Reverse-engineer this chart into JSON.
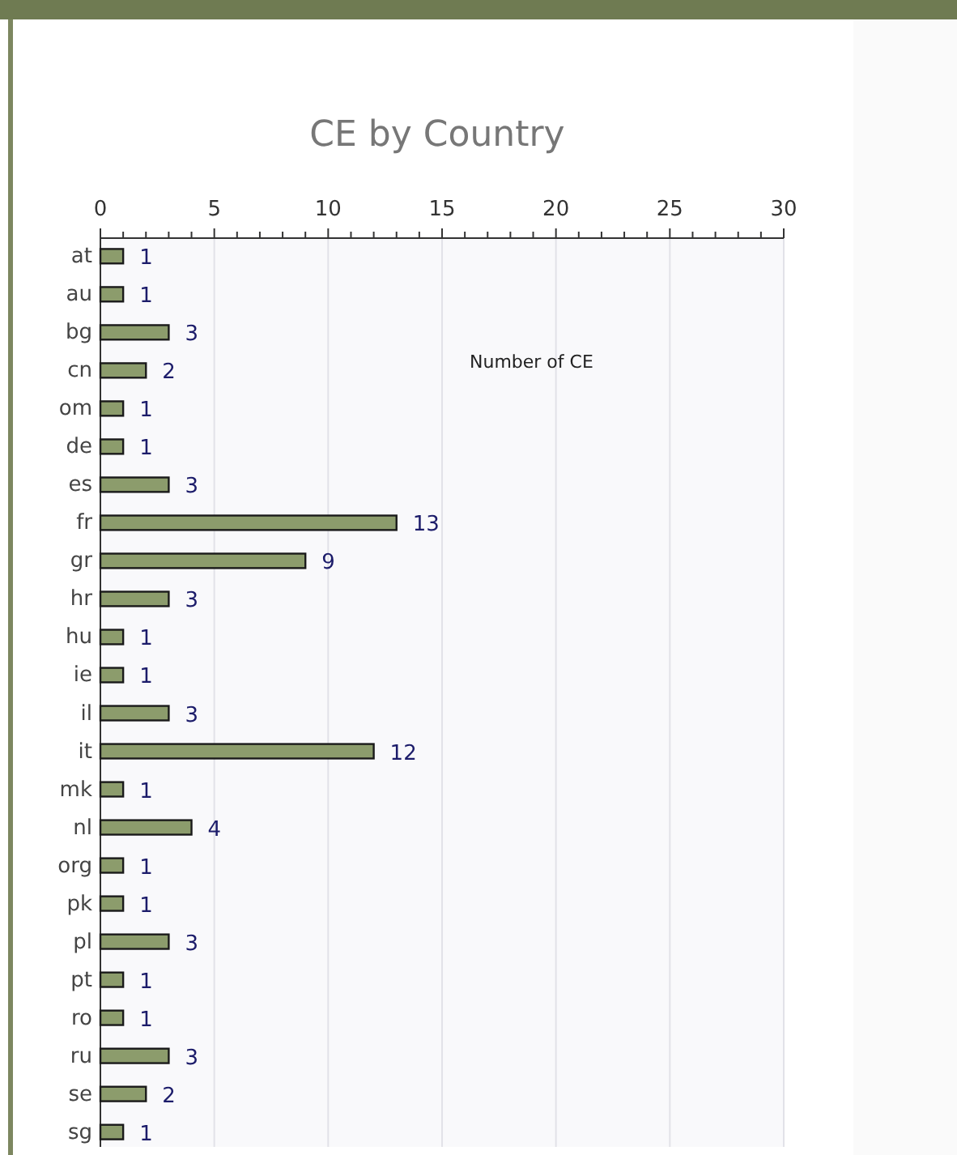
{
  "chart_data": {
    "type": "bar",
    "orientation": "horizontal",
    "title": "CE by Country",
    "categories": [
      "at",
      "au",
      "bg",
      "cn",
      "om",
      "de",
      "es",
      "fr",
      "gr",
      "hr",
      "hu",
      "ie",
      "il",
      "it",
      "mk",
      "nl",
      "org",
      "pk",
      "pl",
      "pt",
      "ro",
      "ru",
      "se",
      "sg"
    ],
    "values": [
      1,
      1,
      3,
      2,
      1,
      1,
      3,
      13,
      9,
      3,
      1,
      1,
      3,
      12,
      1,
      4,
      1,
      1,
      3,
      1,
      1,
      3,
      2,
      1
    ],
    "color": "#8c9c6c",
    "data_labels": true,
    "grid": "x",
    "xlim": [
      0,
      30
    ],
    "xticks": [
      0,
      {
        "value": 1,
        "label": null
      },
      {
        "value": 2,
        "label": null
      },
      {
        "value": 3,
        "label": null
      },
      {
        "value": 4,
        "label": null
      },
      5,
      {
        "value": 6,
        "label": null
      },
      {
        "value": 7,
        "label": null
      },
      {
        "value": 8,
        "label": null
      },
      {
        "value": 9,
        "label": null
      },
      10,
      {
        "value": 11,
        "label": null
      },
      {
        "value": 12,
        "label": null
      },
      {
        "value": 13,
        "label": null
      },
      {
        "value": 14,
        "label": null
      },
      15,
      {
        "value": 16,
        "label": null
      },
      {
        "value": 17,
        "label": null
      },
      {
        "value": 18,
        "label": null
      },
      {
        "value": 19,
        "label": null
      },
      20,
      {
        "value": 21,
        "label": null
      },
      {
        "value": 22,
        "label": null
      },
      {
        "value": 23,
        "label": null
      },
      {
        "value": 24,
        "label": null
      },
      25,
      {
        "value": 26,
        "label": null
      },
      {
        "value": 27,
        "label": null
      },
      {
        "value": 28,
        "label": null
      },
      {
        "value": 29,
        "label": null
      },
      30
    ],
    "annotations": [
      "Number of CE"
    ]
  }
}
